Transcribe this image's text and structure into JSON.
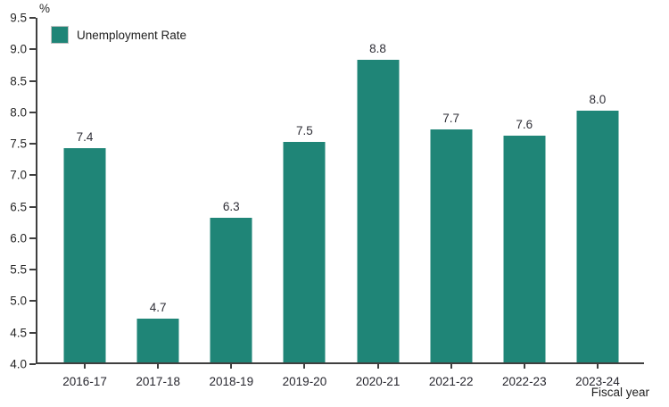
{
  "chart_data": {
    "type": "bar",
    "title": "",
    "categories": [
      "2016-17",
      "2017-18",
      "2018-19",
      "2019-20",
      "2020-21",
      "2021-22",
      "2022-23",
      "2023-24"
    ],
    "values": [
      7.4,
      4.7,
      6.3,
      7.5,
      8.8,
      7.7,
      7.6,
      8.0
    ],
    "value_labels": [
      "7.4",
      "4.7",
      "6.3",
      "7.5",
      "8.8",
      "7.7",
      "7.6",
      "8.0"
    ],
    "xlabel": "Fiscal year",
    "ylabel": "%",
    "ylim": [
      4.0,
      9.5
    ],
    "ytick_step": 0.5,
    "ytick_labels": [
      "9.5",
      "9.0",
      "8.5",
      "8.0",
      "7.5",
      "7.0",
      "6.5",
      "6.0",
      "5.5",
      "5.0",
      "4.5",
      "4.0"
    ],
    "grid": false,
    "legend_position": "top-left",
    "legend": [
      {
        "label": "Unemployment Rate",
        "color": "#1f8577"
      }
    ],
    "colors": {
      "bar": "#1f8577",
      "axis": "#3f3f3f",
      "text": "#262626",
      "legend_swatch_border": "#c2c2c2"
    }
  }
}
